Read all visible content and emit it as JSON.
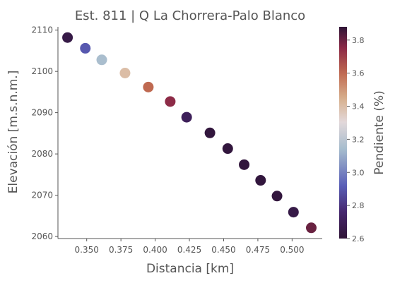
{
  "chart_data": {
    "type": "scatter",
    "title": "Est. 811 | Q La Chorrera-Palo Blanco",
    "xlabel": "Distancia [km]",
    "ylabel": "Elevación [m.s.n.m.]",
    "colorbar_label": "Pendiente (%)",
    "xlim": [
      0.329,
      0.522
    ],
    "ylim": [
      2059.5,
      2110.8
    ],
    "clim": [
      2.6,
      3.88
    ],
    "colormap": "twilight_shifted",
    "grid": false,
    "x_ticks": [
      0.35,
      0.375,
      0.4,
      0.425,
      0.45,
      0.475,
      0.5
    ],
    "x_tick_labels": [
      "0.350",
      "0.375",
      "0.400",
      "0.425",
      "0.450",
      "0.475",
      "0.500"
    ],
    "y_ticks": [
      2060,
      2070,
      2080,
      2090,
      2100,
      2110
    ],
    "y_tick_labels": [
      "2060",
      "2070",
      "2080",
      "2090",
      "2100",
      "2110"
    ],
    "cb_ticks": [
      2.6,
      2.8,
      3.0,
      3.2,
      3.4,
      3.6,
      3.8
    ],
    "cb_tick_labels": [
      "2.6",
      "2.8",
      "3.0",
      "3.2",
      "3.4",
      "3.6",
      "3.8"
    ],
    "points": [
      {
        "x": 0.336,
        "y": 2108.2,
        "c": 2.65
      },
      {
        "x": 0.349,
        "y": 2105.6,
        "c": 2.9
      },
      {
        "x": 0.361,
        "y": 2102.8,
        "c": 3.15
      },
      {
        "x": 0.378,
        "y": 2099.6,
        "c": 3.4
      },
      {
        "x": 0.395,
        "y": 2096.2,
        "c": 3.6
      },
      {
        "x": 0.411,
        "y": 2092.7,
        "c": 3.75
      },
      {
        "x": 0.423,
        "y": 2088.9,
        "c": 2.7
      },
      {
        "x": 0.44,
        "y": 2085.1,
        "c": 2.62
      },
      {
        "x": 0.453,
        "y": 2081.3,
        "c": 2.62
      },
      {
        "x": 0.465,
        "y": 2077.4,
        "c": 2.62
      },
      {
        "x": 0.477,
        "y": 2073.6,
        "c": 2.62
      },
      {
        "x": 0.489,
        "y": 2069.8,
        "c": 2.62
      },
      {
        "x": 0.501,
        "y": 2065.9,
        "c": 2.65
      },
      {
        "x": 0.514,
        "y": 2062.1,
        "c": 3.8
      }
    ]
  },
  "colors": {
    "text": "#555555",
    "cmap_stops": [
      [
        0.0,
        "#2f1436"
      ],
      [
        0.12,
        "#45256b"
      ],
      [
        0.25,
        "#5a5fb8"
      ],
      [
        0.42,
        "#a5bccd"
      ],
      [
        0.55,
        "#e2d8da"
      ],
      [
        0.66,
        "#d7b08e"
      ],
      [
        0.78,
        "#c06a51"
      ],
      [
        0.9,
        "#8c2a47"
      ],
      [
        1.0,
        "#2f1436"
      ]
    ]
  }
}
